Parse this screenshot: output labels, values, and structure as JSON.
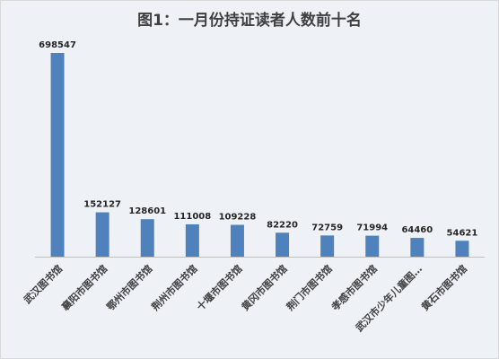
{
  "chart_data": {
    "type": "bar",
    "title": "图1：一月份持证读者人数前十名",
    "categories": [
      "武汉图书馆",
      "襄阳市图书馆",
      "鄂州市图书馆",
      "荆州市图书馆",
      "十堰市图书馆",
      "黄冈市图书馆",
      "荆门市图书馆",
      "孝感市图书馆",
      "武汉市少年儿童图…",
      "黄石市图书馆"
    ],
    "values": [
      698547,
      152127,
      128601,
      111008,
      109228,
      82220,
      72759,
      71994,
      64460,
      54621
    ],
    "data_labels": [
      "698547",
      "152127",
      "128601",
      "111008",
      "109228",
      "82220",
      "72759",
      "71994",
      "64460",
      "54621"
    ],
    "ylim": [
      0,
      698547
    ],
    "grid": false,
    "colors": {
      "bar": "#4f81bd",
      "axis": "#bfbfbf"
    }
  }
}
